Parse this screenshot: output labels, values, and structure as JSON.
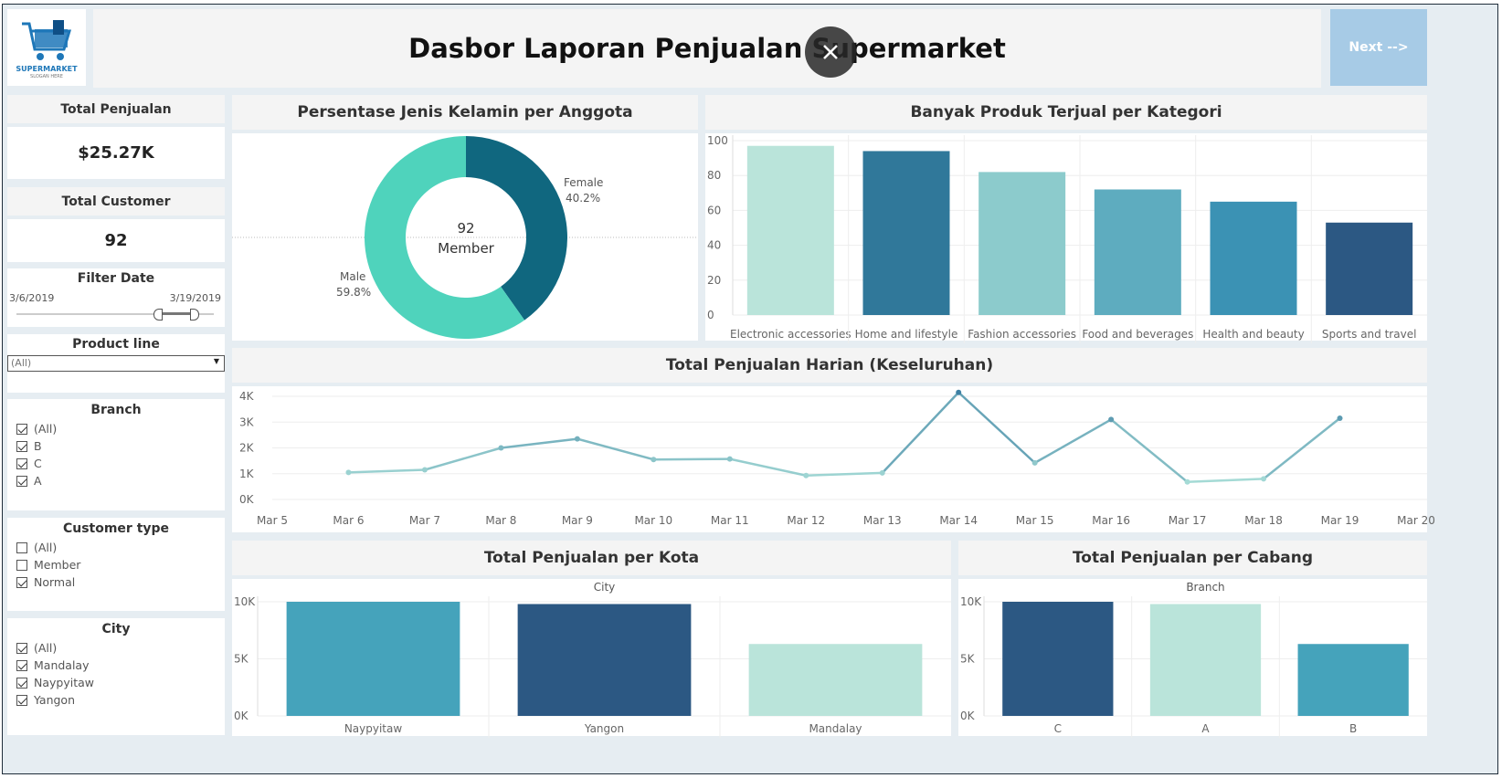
{
  "header": {
    "title": "Dasbor Laporan Penjualan Supermarket",
    "logo_text": "SUPERMARKET",
    "logo_tagline": "SLOGAN HERE",
    "next_label": "Next -->"
  },
  "kpis": {
    "total_penjualan_label": "Total Penjualan",
    "total_penjualan_value": "$25.27K",
    "total_customer_label": "Total Customer",
    "total_customer_value": "92"
  },
  "filters": {
    "date": {
      "label": "Filter Date",
      "start": "3/6/2019",
      "end": "3/19/2019"
    },
    "product_line": {
      "label": "Product line",
      "selected": "(All)"
    },
    "branch": {
      "label": "Branch",
      "options": [
        {
          "label": "(All)",
          "checked": true
        },
        {
          "label": "B",
          "checked": true
        },
        {
          "label": "C",
          "checked": true
        },
        {
          "label": "A",
          "checked": true
        }
      ]
    },
    "customer_type": {
      "label": "Customer type",
      "options": [
        {
          "label": "(All)",
          "checked": false
        },
        {
          "label": "Member",
          "checked": false
        },
        {
          "label": "Normal",
          "checked": true
        }
      ]
    },
    "city": {
      "label": "City",
      "options": [
        {
          "label": "(All)",
          "checked": true
        },
        {
          "label": "Mandalay",
          "checked": true
        },
        {
          "label": "Naypyitaw",
          "checked": true
        },
        {
          "label": "Yangon",
          "checked": true
        }
      ]
    }
  },
  "colors": {
    "teal_dark": "#10677f",
    "teal_light": "#4fd3bc",
    "line_light": "#a5dbd6",
    "line_dark": "#3d7fa2",
    "next_bg": "#a7cbe6"
  },
  "chart_data": [
    {
      "id": "gender",
      "type": "pie",
      "title": "Persentase Jenis Kelamin per Anggota",
      "center_value": "92",
      "center_label": "Member",
      "slices": [
        {
          "name": "Female",
          "label": "40.2%",
          "value": 40.2,
          "color": "#10677f"
        },
        {
          "name": "Male",
          "label": "59.8%",
          "value": 59.8,
          "color": "#4fd3bc"
        }
      ]
    },
    {
      "id": "category",
      "type": "bar",
      "title": "Banyak Produk Terjual per Kategori",
      "categories": [
        "Electronic accessories",
        "Home and lifestyle",
        "Fashion accessories",
        "Food and beverages",
        "Health and beauty",
        "Sports and travel"
      ],
      "values": [
        97,
        94,
        82,
        72,
        65,
        53
      ],
      "colors": [
        "#bae4da",
        "#30789a",
        "#8ccbcc",
        "#5eacbf",
        "#3b92b4",
        "#2c5883"
      ],
      "ylim": [
        0,
        100
      ],
      "yticks": [
        "0",
        "20",
        "40",
        "60",
        "80",
        "100"
      ]
    },
    {
      "id": "daily",
      "type": "line",
      "title": "Total Penjualan Harian (Keseluruhan)",
      "x": [
        "Mar 5",
        "Mar 6",
        "Mar 7",
        "Mar 8",
        "Mar 9",
        "Mar 10",
        "Mar 11",
        "Mar 12",
        "Mar 13",
        "Mar 14",
        "Mar 15",
        "Mar 16",
        "Mar 17",
        "Mar 18",
        "Mar 19",
        "Mar 20"
      ],
      "values": [
        null,
        1050,
        1150,
        2000,
        2350,
        1550,
        1570,
        930,
        1030,
        4150,
        1420,
        3100,
        680,
        800,
        3150,
        null
      ],
      "ylim": [
        0,
        4000
      ],
      "yticks": [
        "0K",
        "1K",
        "2K",
        "3K",
        "4K"
      ]
    },
    {
      "id": "city",
      "type": "bar",
      "title": "Total Penjualan per Kota",
      "xlabel": "City",
      "categories": [
        "Naypyitaw",
        "Yangon",
        "Mandalay"
      ],
      "values": [
        10000,
        9800,
        6300
      ],
      "colors": [
        "#45a3bb",
        "#2c5883",
        "#bae4da"
      ],
      "ylim": [
        0,
        10000
      ],
      "yticks": [
        "0K",
        "5K",
        "10K"
      ]
    },
    {
      "id": "branch",
      "type": "bar",
      "title": "Total Penjualan per Cabang",
      "xlabel": "Branch",
      "categories": [
        "C",
        "A",
        "B"
      ],
      "values": [
        10000,
        9800,
        6300
      ],
      "colors": [
        "#2c5883",
        "#bae4da",
        "#45a3bb"
      ],
      "ylim": [
        0,
        10000
      ],
      "yticks": [
        "0K",
        "5K",
        "10K"
      ]
    }
  ]
}
